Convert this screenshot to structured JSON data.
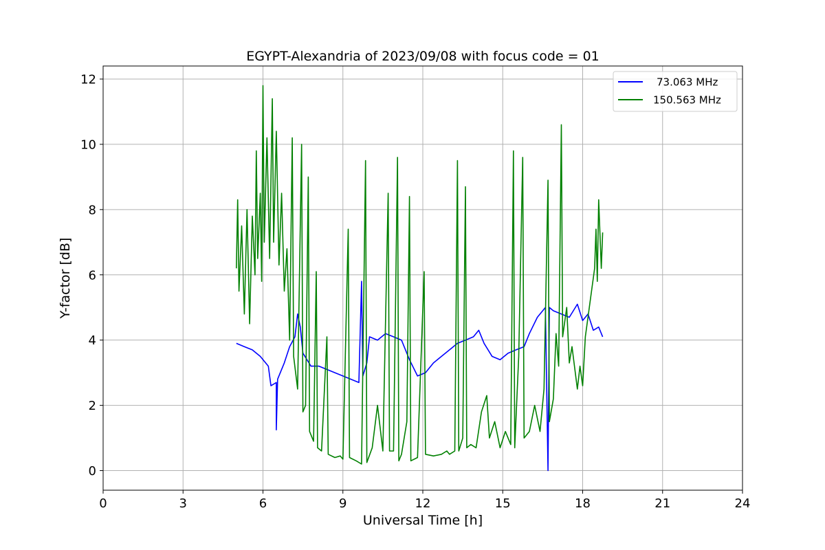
{
  "chart_data": {
    "type": "line",
    "title": "EGYPT-Alexandria of 2023/09/08 with focus code = 01",
    "xlabel": "Universal Time [h]",
    "ylabel": "Y-factor [dB]",
    "xlim": [
      0,
      24
    ],
    "ylim": [
      -0.6,
      12.4
    ],
    "xticks": [
      0,
      3,
      6,
      9,
      12,
      15,
      18,
      21,
      24
    ],
    "xtick_labels": [
      "0",
      "3",
      "6",
      "9",
      "12",
      "15",
      "18",
      "21",
      "24"
    ],
    "yticks": [
      0,
      2,
      4,
      6,
      8,
      10,
      12
    ],
    "ytick_labels": [
      "0",
      "2",
      "4",
      "6",
      "8",
      "10",
      "12"
    ],
    "grid": true,
    "legend_position": "top-right",
    "series": [
      {
        "name": "73.063 MHz",
        "color": "#0000ff",
        "points": [
          [
            5.0,
            3.9
          ],
          [
            5.3,
            3.8
          ],
          [
            5.6,
            3.7
          ],
          [
            5.9,
            3.5
          ],
          [
            6.2,
            3.2
          ],
          [
            6.3,
            2.6
          ],
          [
            6.5,
            2.7
          ],
          [
            6.5,
            1.25
          ],
          [
            6.55,
            2.8
          ],
          [
            6.8,
            3.3
          ],
          [
            7.0,
            3.8
          ],
          [
            7.2,
            4.1
          ],
          [
            7.3,
            4.8
          ],
          [
            7.4,
            4.4
          ],
          [
            7.5,
            3.6
          ],
          [
            7.8,
            3.2
          ],
          [
            8.1,
            3.2
          ],
          [
            8.4,
            3.1
          ],
          [
            8.7,
            3.0
          ],
          [
            9.0,
            2.9
          ],
          [
            9.3,
            2.8
          ],
          [
            9.6,
            2.7
          ],
          [
            9.7,
            5.8
          ],
          [
            9.75,
            2.9
          ],
          [
            9.9,
            3.3
          ],
          [
            10.0,
            4.1
          ],
          [
            10.3,
            4.0
          ],
          [
            10.6,
            4.2
          ],
          [
            10.9,
            4.1
          ],
          [
            11.2,
            4.0
          ],
          [
            11.5,
            3.4
          ],
          [
            11.8,
            2.9
          ],
          [
            12.1,
            3.0
          ],
          [
            12.4,
            3.3
          ],
          [
            12.7,
            3.5
          ],
          [
            13.0,
            3.7
          ],
          [
            13.3,
            3.9
          ],
          [
            13.6,
            4.0
          ],
          [
            13.9,
            4.1
          ],
          [
            14.1,
            4.3
          ],
          [
            14.3,
            3.9
          ],
          [
            14.6,
            3.5
          ],
          [
            14.9,
            3.4
          ],
          [
            15.2,
            3.6
          ],
          [
            15.5,
            3.7
          ],
          [
            15.8,
            3.8
          ],
          [
            16.0,
            4.2
          ],
          [
            16.3,
            4.7
          ],
          [
            16.6,
            5.0
          ],
          [
            16.7,
            0.0
          ],
          [
            16.75,
            5.0
          ],
          [
            16.9,
            4.9
          ],
          [
            17.2,
            4.8
          ],
          [
            17.5,
            4.7
          ],
          [
            17.8,
            5.1
          ],
          [
            18.0,
            4.6
          ],
          [
            18.2,
            4.8
          ],
          [
            18.4,
            4.3
          ],
          [
            18.6,
            4.4
          ],
          [
            18.75,
            4.1
          ]
        ]
      },
      {
        "name": "150.563 MHz",
        "color": "#008000",
        "points": [
          [
            5.0,
            6.2
          ],
          [
            5.05,
            8.3
          ],
          [
            5.1,
            5.5
          ],
          [
            5.2,
            7.5
          ],
          [
            5.3,
            4.8
          ],
          [
            5.4,
            8.0
          ],
          [
            5.5,
            4.5
          ],
          [
            5.6,
            7.8
          ],
          [
            5.7,
            6.0
          ],
          [
            5.75,
            9.8
          ],
          [
            5.8,
            6.5
          ],
          [
            5.9,
            8.5
          ],
          [
            5.95,
            5.8
          ],
          [
            6.0,
            11.8
          ],
          [
            6.05,
            7.0
          ],
          [
            6.15,
            10.2
          ],
          [
            6.25,
            6.5
          ],
          [
            6.35,
            11.4
          ],
          [
            6.4,
            7.0
          ],
          [
            6.5,
            10.4
          ],
          [
            6.6,
            6.3
          ],
          [
            6.7,
            8.5
          ],
          [
            6.8,
            5.5
          ],
          [
            6.9,
            6.8
          ],
          [
            7.0,
            4.0
          ],
          [
            7.1,
            10.2
          ],
          [
            7.15,
            3.5
          ],
          [
            7.3,
            2.5
          ],
          [
            7.45,
            10.0
          ],
          [
            7.5,
            1.8
          ],
          [
            7.6,
            2.0
          ],
          [
            7.7,
            9.0
          ],
          [
            7.75,
            1.2
          ],
          [
            7.9,
            0.9
          ],
          [
            8.0,
            6.1
          ],
          [
            8.05,
            0.7
          ],
          [
            8.2,
            0.6
          ],
          [
            8.4,
            4.1
          ],
          [
            8.45,
            0.5
          ],
          [
            8.7,
            0.4
          ],
          [
            8.9,
            0.45
          ],
          [
            9.0,
            0.35
          ],
          [
            9.2,
            7.4
          ],
          [
            9.25,
            0.4
          ],
          [
            9.5,
            0.3
          ],
          [
            9.7,
            0.2
          ],
          [
            9.85,
            9.5
          ],
          [
            9.9,
            0.25
          ],
          [
            10.1,
            0.7
          ],
          [
            10.3,
            2.0
          ],
          [
            10.5,
            0.6
          ],
          [
            10.7,
            8.5
          ],
          [
            10.75,
            0.6
          ],
          [
            10.9,
            0.6
          ],
          [
            11.05,
            9.6
          ],
          [
            11.1,
            0.3
          ],
          [
            11.2,
            0.5
          ],
          [
            11.4,
            1.5
          ],
          [
            11.5,
            8.4
          ],
          [
            11.55,
            0.3
          ],
          [
            11.8,
            0.4
          ],
          [
            12.05,
            6.1
          ],
          [
            12.1,
            0.5
          ],
          [
            12.4,
            0.45
          ],
          [
            12.7,
            0.5
          ],
          [
            12.9,
            0.6
          ],
          [
            13.0,
            0.5
          ],
          [
            13.2,
            0.6
          ],
          [
            13.3,
            9.5
          ],
          [
            13.35,
            0.6
          ],
          [
            13.5,
            1.0
          ],
          [
            13.6,
            8.7
          ],
          [
            13.65,
            0.7
          ],
          [
            13.8,
            0.8
          ],
          [
            14.0,
            0.7
          ],
          [
            14.2,
            1.8
          ],
          [
            14.4,
            2.3
          ],
          [
            14.5,
            1.0
          ],
          [
            14.7,
            1.5
          ],
          [
            14.9,
            0.7
          ],
          [
            15.1,
            1.2
          ],
          [
            15.3,
            0.8
          ],
          [
            15.4,
            9.8
          ],
          [
            15.45,
            0.7
          ],
          [
            15.6,
            3.5
          ],
          [
            15.75,
            9.6
          ],
          [
            15.8,
            1.0
          ],
          [
            16.0,
            1.2
          ],
          [
            16.2,
            2.0
          ],
          [
            16.4,
            1.2
          ],
          [
            16.55,
            2.5
          ],
          [
            16.7,
            8.9
          ],
          [
            16.75,
            1.5
          ],
          [
            16.9,
            2.2
          ],
          [
            17.0,
            4.2
          ],
          [
            17.1,
            3.2
          ],
          [
            17.2,
            10.6
          ],
          [
            17.25,
            4.1
          ],
          [
            17.4,
            5.0
          ],
          [
            17.5,
            3.3
          ],
          [
            17.6,
            3.8
          ],
          [
            17.8,
            2.5
          ],
          [
            17.9,
            3.2
          ],
          [
            18.0,
            2.6
          ],
          [
            18.1,
            4.1
          ],
          [
            18.3,
            5.3
          ],
          [
            18.45,
            6.2
          ],
          [
            18.5,
            7.4
          ],
          [
            18.55,
            5.8
          ],
          [
            18.6,
            8.3
          ],
          [
            18.7,
            6.2
          ],
          [
            18.75,
            7.3
          ]
        ]
      }
    ]
  }
}
